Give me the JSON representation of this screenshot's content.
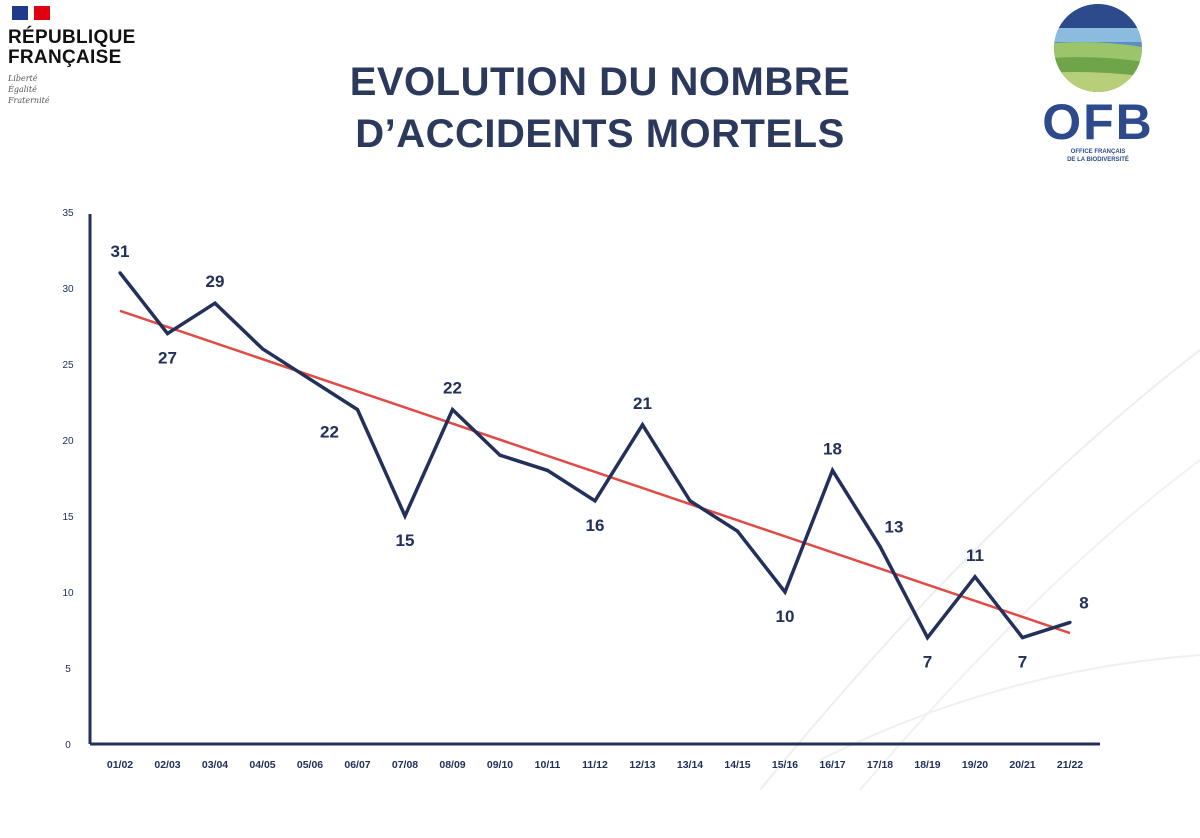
{
  "header": {
    "republic_name": "RÉPUBLIQUE FRANÇAISE",
    "motto": [
      "Liberté",
      "Égalité",
      "Fraternité"
    ],
    "ofb_logo": "OFB",
    "ofb_sub": [
      "OFFICE FRANÇAIS",
      "DE LA BIODIVERSITÉ"
    ]
  },
  "title_lines": [
    "EVOLUTION DU NOMBRE",
    "D’ACCIDENTS MORTELS"
  ],
  "chart_data": {
    "type": "line",
    "categories": [
      "01/02",
      "02/03",
      "03/04",
      "04/05",
      "05/06",
      "06/07",
      "07/08",
      "08/09",
      "09/10",
      "10/11",
      "11/12",
      "12/13",
      "13/14",
      "14/15",
      "15/16",
      "16/17",
      "17/18",
      "18/19",
      "19/20",
      "20/21",
      "21/22"
    ],
    "series": [
      {
        "values": [
          31,
          27,
          29,
          26,
          24,
          22,
          15,
          22,
          19,
          18,
          16,
          21,
          16,
          14,
          10,
          18,
          13,
          7,
          11,
          7,
          8
        ],
        "color": "#22305a"
      }
    ],
    "trendline": {
      "start": 28.5,
      "end": 7.3,
      "color": "#e04b45"
    },
    "data_labels": [
      {
        "index": 0,
        "text": "31",
        "pos": "above"
      },
      {
        "index": 1,
        "text": "27",
        "pos": "below"
      },
      {
        "index": 2,
        "text": "29",
        "pos": "above"
      },
      {
        "index": 5,
        "text": "22",
        "pos": "below-left"
      },
      {
        "index": 6,
        "text": "15",
        "pos": "below"
      },
      {
        "index": 7,
        "text": "22",
        "pos": "above"
      },
      {
        "index": 10,
        "text": "16",
        "pos": "below"
      },
      {
        "index": 11,
        "text": "21",
        "pos": "above"
      },
      {
        "index": 14,
        "text": "10",
        "pos": "below"
      },
      {
        "index": 15,
        "text": "18",
        "pos": "above"
      },
      {
        "index": 16,
        "text": "13",
        "pos": "above-right"
      },
      {
        "index": 17,
        "text": "7",
        "pos": "below"
      },
      {
        "index": 18,
        "text": "11",
        "pos": "above"
      },
      {
        "index": 19,
        "text": "7",
        "pos": "below"
      },
      {
        "index": 20,
        "text": "8",
        "pos": "above-right"
      }
    ],
    "yticks": [
      0,
      5,
      10,
      15,
      20,
      25,
      30,
      35
    ],
    "ylim": [
      0,
      35
    ],
    "grid": false,
    "title": "EVOLUTION DU NOMBRE D’ACCIDENTS MORTELS"
  }
}
